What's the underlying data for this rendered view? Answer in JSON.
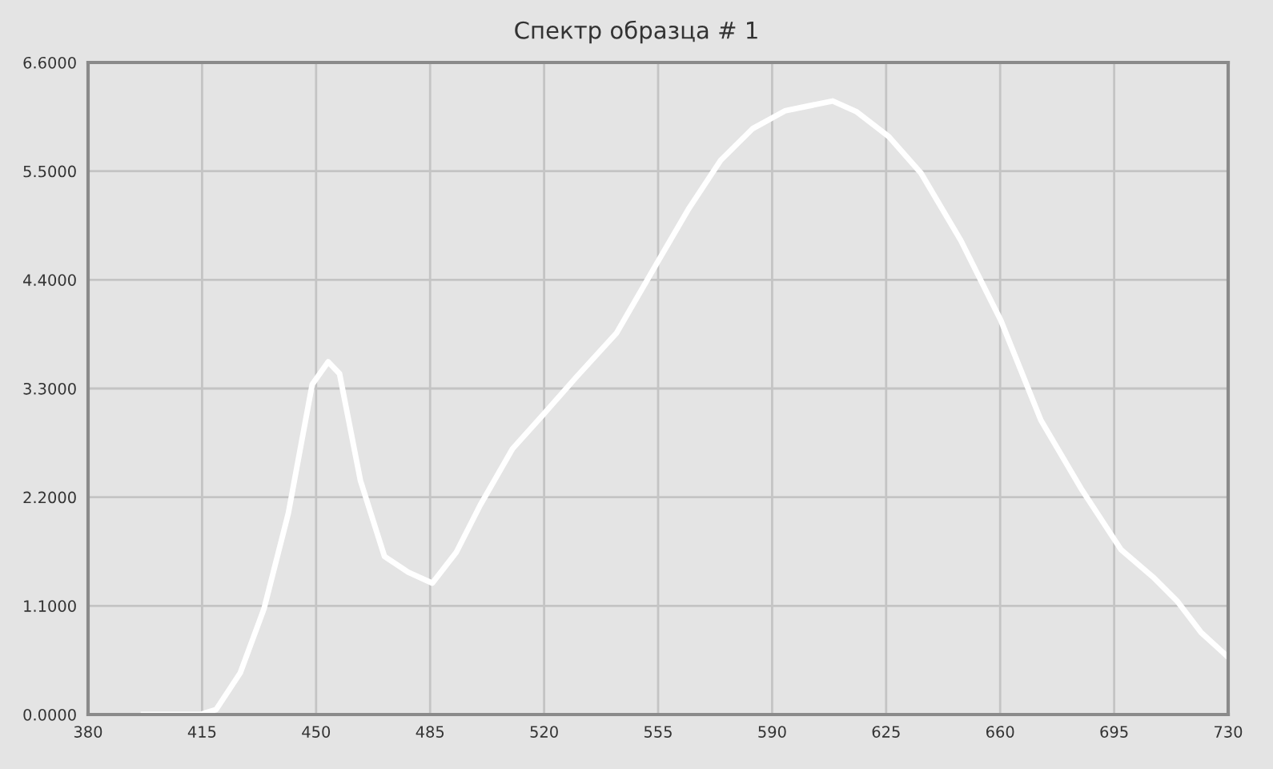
{
  "chart_data": {
    "type": "line",
    "title": "Спектр образца # 1",
    "x": [
      397,
      414.4,
      419.3,
      426.7,
      434,
      441.5,
      448.8,
      453.7,
      457.2,
      463.6,
      471,
      478.3,
      485.7,
      493,
      500.4,
      510.3,
      520.1,
      530,
      542.2,
      554.5,
      564.4,
      574.2,
      584,
      593.9,
      601.2,
      608.6,
      616,
      625.8,
      635.7,
      647.9,
      660.2,
      672.5,
      684.8,
      697.1,
      707,
      714.3,
      721.7,
      730
    ],
    "series": [
      {
        "color": "#ffffff",
        "values": [
          0.0,
          0.0,
          0.05,
          0.42,
          1.07,
          2.04,
          3.34,
          3.57,
          3.45,
          2.37,
          1.6,
          1.44,
          1.33,
          1.64,
          2.12,
          2.69,
          3.05,
          3.42,
          3.86,
          4.56,
          5.12,
          5.61,
          5.93,
          6.11,
          6.16,
          6.21,
          6.1,
          5.85,
          5.48,
          4.8,
          3.99,
          2.98,
          2.29,
          1.67,
          1.39,
          1.15,
          0.83,
          0.58
        ]
      }
    ],
    "xlim": [
      380,
      730
    ],
    "xticks": [
      380,
      415,
      450,
      485,
      520,
      555,
      590,
      625,
      660,
      695,
      730
    ],
    "ylim": [
      0,
      6.6
    ],
    "yticks": [
      {
        "value": 0,
        "label": "0.0000"
      },
      {
        "value": 1.1,
        "label": "1.1000"
      },
      {
        "value": 2.2,
        "label": "2.2000"
      },
      {
        "value": 3.3,
        "label": "3.3000"
      },
      {
        "value": 4.4,
        "label": "4.4000"
      },
      {
        "value": 5.5,
        "label": "5.5000"
      },
      {
        "value": 6.6,
        "label": "6.6000"
      }
    ],
    "grid": true,
    "marker": "none",
    "line_style": "solid"
  }
}
